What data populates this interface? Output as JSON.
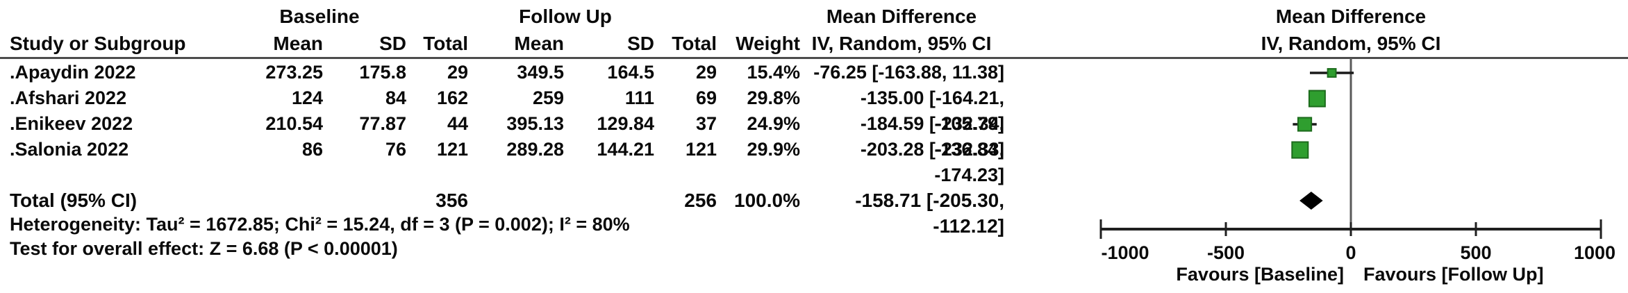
{
  "table": {
    "group_headers": {
      "baseline": "Baseline",
      "followup": "Follow Up"
    },
    "md_text_header": {
      "line1": "Mean Difference",
      "line2": "IV, Random, 95% CI"
    },
    "plot_header": {
      "line1": "Mean Difference",
      "line2": "IV, Random, 95% CI"
    },
    "headers": {
      "study": "Study or Subgroup",
      "b_mean": "Mean",
      "b_sd": "SD",
      "b_total": "Total",
      "f_mean": "Mean",
      "f_sd": "SD",
      "f_total": "Total",
      "weight": "Weight"
    },
    "rows": [
      {
        "study": ".Apaydin 2022",
        "b_mean": "273.25",
        "b_sd": "175.8",
        "b_total": "29",
        "f_mean": "349.5",
        "f_sd": "164.5",
        "f_total": "29",
        "weight": "15.4%",
        "md_ci": "-76.25 [-163.88, 11.38]"
      },
      {
        "study": ".Afshari 2022",
        "b_mean": "124",
        "b_sd": "84",
        "b_total": "162",
        "f_mean": "259",
        "f_sd": "111",
        "f_total": "69",
        "weight": "29.8%",
        "md_ci": "-135.00 [-164.21, -105.79]"
      },
      {
        "study": ".Enikeev 2022",
        "b_mean": "210.54",
        "b_sd": "77.87",
        "b_total": "44",
        "f_mean": "395.13",
        "f_sd": "129.84",
        "f_total": "37",
        "weight": "24.9%",
        "md_ci": "-184.59 [-232.34, -136.84]"
      },
      {
        "study": ".Salonia 2022",
        "b_mean": "86",
        "b_sd": "76",
        "b_total": "121",
        "f_mean": "289.28",
        "f_sd": "144.21",
        "f_total": "121",
        "weight": "29.9%",
        "md_ci": "-203.28 [-232.33, -174.23]"
      }
    ],
    "total_row": {
      "label": "Total (95% CI)",
      "b_total": "356",
      "f_total": "256",
      "weight": "100.0%",
      "md_ci": "-158.71 [-205.30, -112.12]"
    },
    "footnotes": [
      "Heterogeneity: Tau² = 1672.85; Chi² = 15.24, df = 3 (P = 0.002); I² = 80%",
      "Test for overall effect: Z = 6.68 (P < 0.00001)"
    ]
  },
  "chart_data": {
    "type": "forest",
    "effect_label": "Mean Difference",
    "method_label": "IV, Random, 95% CI",
    "studies": [
      {
        "name": ".Apaydin 2022",
        "md": -76.25,
        "ci_low": -163.88,
        "ci_high": 11.38,
        "weight_pct": 15.4
      },
      {
        "name": ".Afshari 2022",
        "md": -135.0,
        "ci_low": -164.21,
        "ci_high": -105.79,
        "weight_pct": 29.8
      },
      {
        "name": ".Enikeev 2022",
        "md": -184.59,
        "ci_low": -232.34,
        "ci_high": -136.84,
        "weight_pct": 24.9
      },
      {
        "name": ".Salonia 2022",
        "md": -203.28,
        "ci_low": -232.33,
        "ci_high": -174.23,
        "weight_pct": 29.9
      }
    ],
    "total": {
      "md": -158.71,
      "ci_low": -205.3,
      "ci_high": -112.12
    },
    "axis": {
      "min": -1000,
      "max": 1000,
      "ticks": [
        -1000,
        -500,
        0,
        500,
        1000
      ],
      "tick_labels": [
        "-1000",
        "-500",
        "0",
        "500",
        "1000"
      ]
    },
    "favours_left": "Favours [Baseline]",
    "favours_right": "Favours [Follow Up]",
    "colors": {
      "marker_fill": "#2f9e2f",
      "marker_border": "#1c6b1c",
      "ci_line": "#1a1a1a",
      "diamond": "#000000",
      "zero_line": "#5a5a5a",
      "axis_line": "#1f1f1f"
    }
  }
}
